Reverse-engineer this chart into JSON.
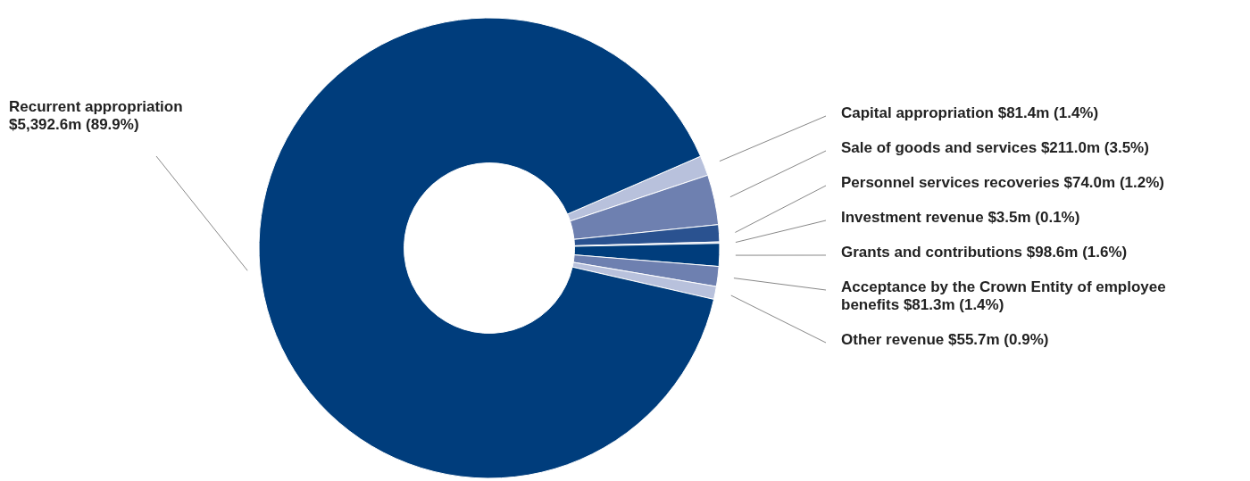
{
  "chart_data": {
    "type": "donut",
    "categories": [
      "Capital appropriation",
      "Sale of goods and services",
      "Personnel services recoveries",
      "Investment revenue",
      "Grants and contributions",
      "Acceptance by the Crown Entity of employee benefits",
      "Other revenue",
      "Recurrent appropriation"
    ],
    "values": [
      1.4,
      3.5,
      1.2,
      0.1,
      1.6,
      1.4,
      0.9,
      89.9
    ],
    "value_labels": [
      "$81.4m (1.4%)",
      "$211.0m (3.5%)",
      "$74.0m (1.2%)",
      "$3.5m (0.1%)",
      "$98.6m (1.6%)",
      "$81.3m (1.4%)",
      "$55.7m (0.9%)",
      "$5,392.6m (89.9%)"
    ],
    "colors": [
      "#b8c1dc",
      "#6e80b0",
      "#2a5290",
      "#b8c1dc",
      "#003d7c",
      "#6e80b0",
      "#b8c1dc",
      "#003d7c"
    ]
  }
}
